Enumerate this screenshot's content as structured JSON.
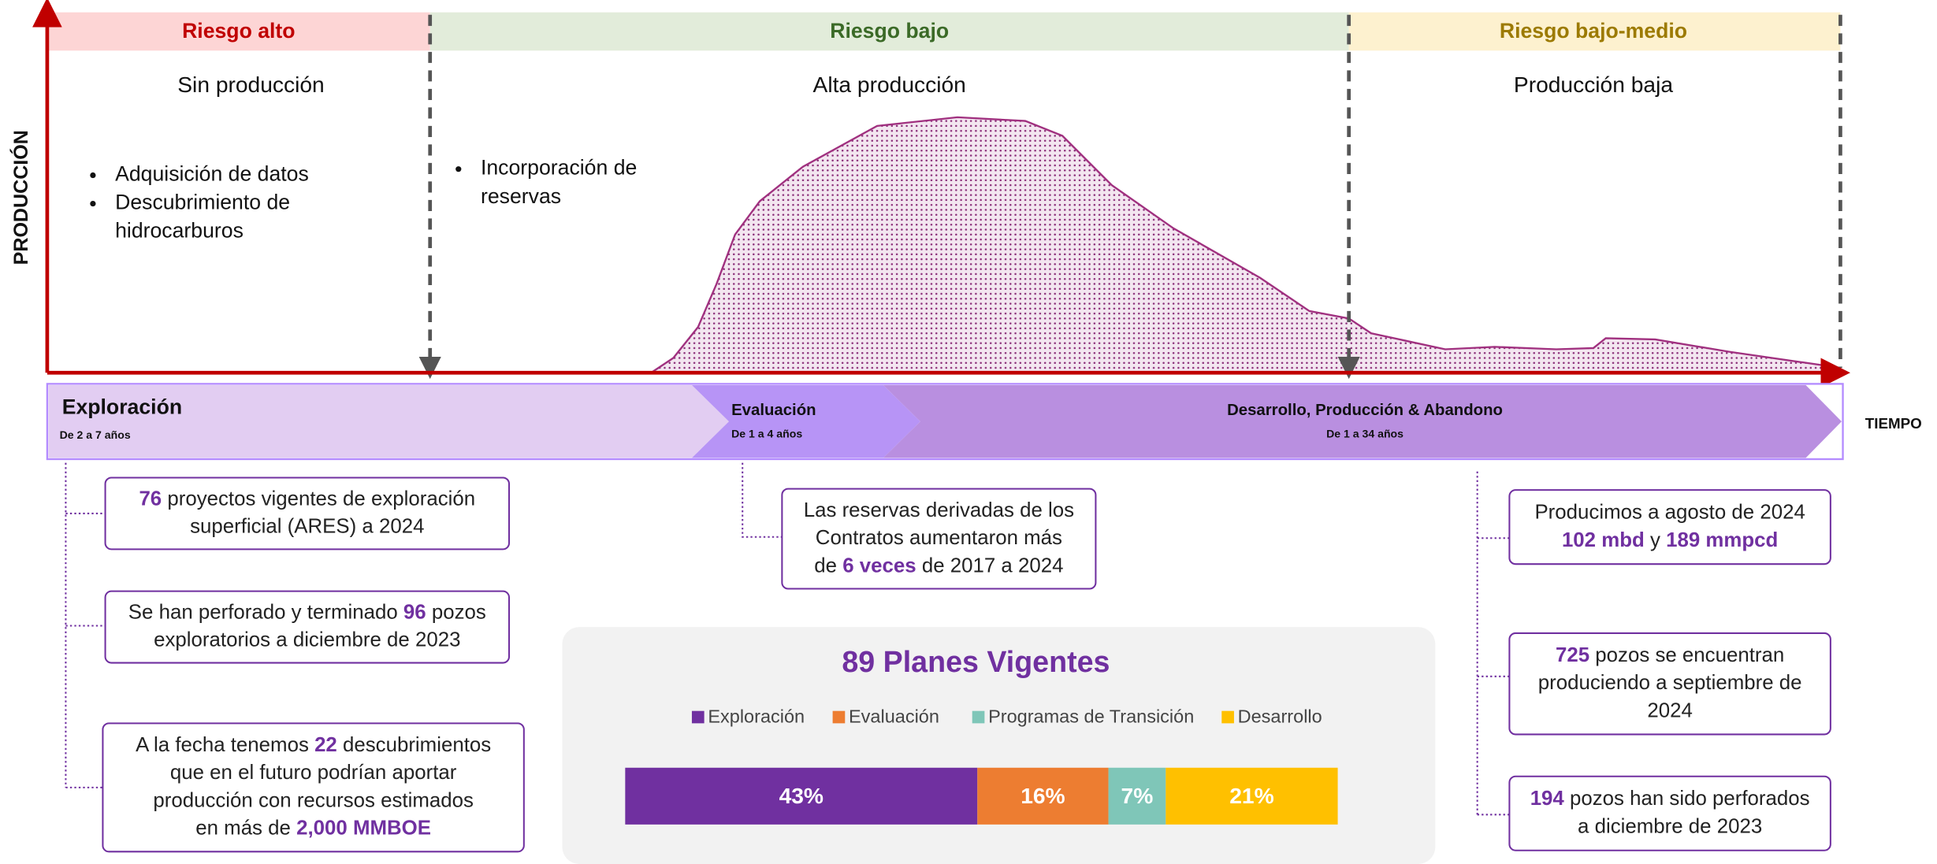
{
  "header": {
    "risk_bands": [
      "Riesgo alto",
      "Riesgo bajo",
      "Riesgo bajo-medio"
    ],
    "production_levels": [
      "Sin producción",
      "Alta producción",
      "Producción baja"
    ]
  },
  "y_axis_label": "PRODUCCIÓN",
  "x_axis_label": "TIEMPO",
  "notes": {
    "exploration": [
      [
        "Adquisición de datos"
      ],
      [
        "Descubrimiento de",
        "hidrocarburos"
      ]
    ],
    "evaluation": [
      [
        "Incorporación de",
        "reservas"
      ]
    ]
  },
  "phases": [
    {
      "name": "Exploración",
      "duration": "De 2 a 7 años"
    },
    {
      "name": "Evaluación",
      "duration": "De 1 a 4 años"
    },
    {
      "name": "Desarrollo, Producción & Abandono",
      "duration": "De 1 a 34 años"
    }
  ],
  "facts": [
    {
      "lines": [
        [
          {
            "text": "76",
            "highlight": true
          },
          " proyectos vigentes de exploración"
        ],
        [
          "superficial (ARES) a 2024"
        ]
      ]
    },
    {
      "lines": [
        [
          "Se han perforado y terminado ",
          {
            "text": "96",
            "highlight": true
          },
          " pozos"
        ],
        [
          "exploratorios a diciembre de 2023"
        ]
      ]
    },
    {
      "lines": [
        [
          "A la fecha tenemos ",
          {
            "text": "22",
            "highlight": true
          },
          " descubrimientos"
        ],
        [
          "que en el futuro podrían aportar"
        ],
        [
          "producción con recursos estimados"
        ],
        [
          "en más de ",
          {
            "text": "2,000 MMBOE",
            "highlight": true
          }
        ]
      ]
    },
    {
      "lines": [
        [
          "Las reservas derivadas de los"
        ],
        [
          "Contratos aumentaron más"
        ],
        [
          "de ",
          {
            "text": "6 veces",
            "highlight": true
          },
          " de 2017 a 2024"
        ]
      ]
    },
    {
      "lines": [
        [
          "Producimos a agosto de 2024"
        ],
        [
          {
            "text": "102 mbd",
            "highlight": true
          },
          " y ",
          {
            "text": "189 mmpcd",
            "highlight": true
          }
        ]
      ]
    },
    {
      "lines": [
        [
          {
            "text": "725",
            "highlight": true
          },
          " pozos se encuentran"
        ],
        [
          "produciendo a septiembre de"
        ],
        [
          "2024"
        ]
      ]
    },
    {
      "lines": [
        [
          {
            "text": "194",
            "highlight": true
          },
          " pozos han sido perforados"
        ],
        [
          "a diciembre de 2023"
        ]
      ]
    }
  ],
  "plans": {
    "title": "89 Planes Vigentes",
    "legend": [
      "Exploración",
      "Evaluación",
      "Programas de Transición",
      "Desarrollo"
    ],
    "colors": [
      "#7030a0",
      "#ed7d31",
      "#7fc6b8",
      "#ffc000"
    ],
    "values": [
      43,
      16,
      7,
      21
    ],
    "value_labels": [
      "43%",
      "16%",
      "7%",
      "21%"
    ]
  }
}
